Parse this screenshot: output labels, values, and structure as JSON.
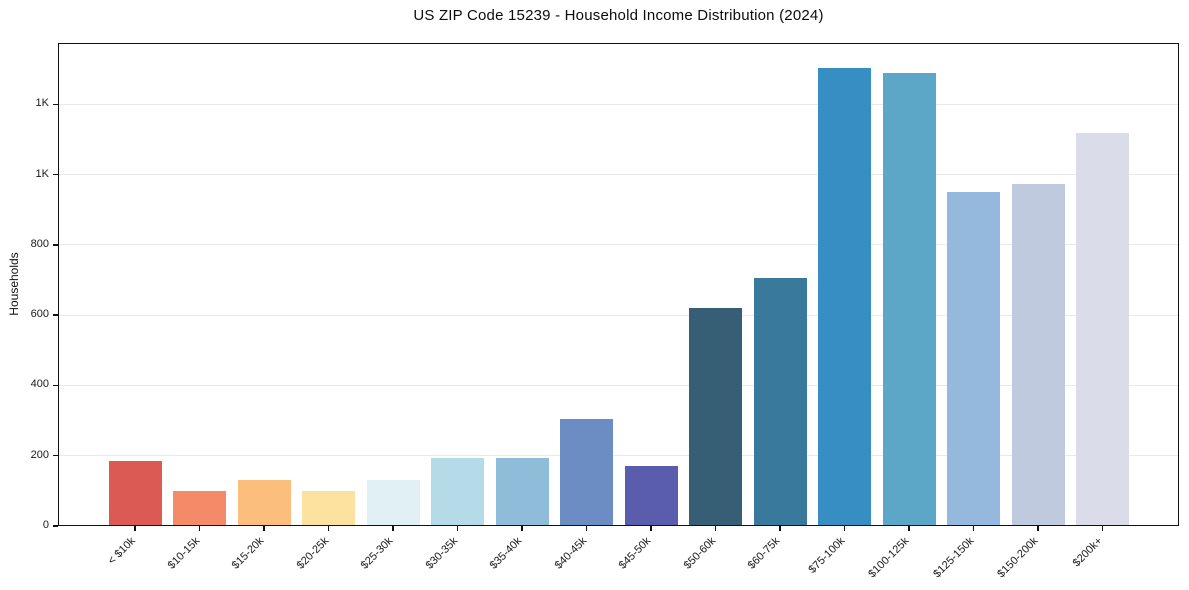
{
  "chart_data": {
    "type": "bar",
    "title": "US ZIP Code 15239 - Household Income Distribution (2024)",
    "xlabel": "",
    "ylabel": "Households",
    "categories": [
      "< $10k",
      "$10-15k",
      "$15-20k",
      "$20-25k",
      "$25-30k",
      "$30-35k",
      "$35-40k",
      "$40-45k",
      "$45-50k",
      "$50-60k",
      "$60-75k",
      "$75-100k",
      "$100-125k",
      "$125-150k",
      "$150-200k",
      "$200k+"
    ],
    "values": [
      185,
      100,
      130,
      100,
      130,
      195,
      195,
      305,
      170,
      620,
      705,
      1305,
      1290,
      950,
      975,
      1120
    ],
    "bar_colors": [
      "#db5a53",
      "#f58a68",
      "#fbbe7c",
      "#fde19e",
      "#e0f0f5",
      "#b5dbe9",
      "#8fbcd8",
      "#6b8dc4",
      "#5a5dac",
      "#365f75",
      "#38799c",
      "#378ec2",
      "#5ca6c8",
      "#94b9dc",
      "#bfcade",
      "#dadce9"
    ],
    "ylim": [
      0,
      1375
    ],
    "yticks": {
      "values": [
        0,
        200,
        400,
        600,
        800,
        1000,
        1200
      ],
      "labels": [
        "0",
        "200",
        "400",
        "600",
        "800",
        "1K",
        "1K"
      ]
    },
    "grid": "horizontal",
    "legend": "none",
    "background_color": "#ffffff",
    "gridline_color": "#e9e9e9",
    "spine_color": "#111111"
  }
}
